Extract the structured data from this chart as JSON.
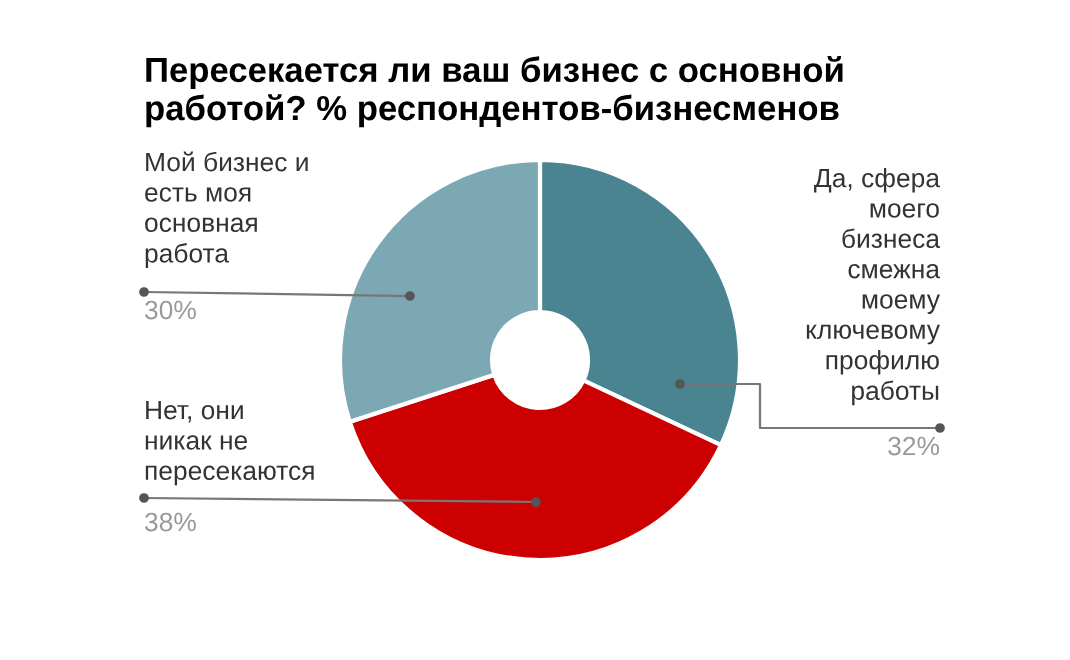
{
  "chart_data": {
    "type": "donut",
    "title": "Пересекается ли ваш бизнес с основной\nработой? % респондентов-бизнесменов",
    "categories": [
      "Да, сфера\nмоего\nбизнеса\nсмежна\nмоему\nключевому\nпрофилю\nработы",
      "Нет, они\nникак не\nпересекаются",
      "Мой бизнес и\nесть моя\nосновная\nработа"
    ],
    "values": [
      32,
      38,
      30
    ],
    "colors": [
      "#4a8491",
      "#cc0000",
      "#7ba8b3"
    ],
    "value_labels": [
      "32%",
      "38%",
      "30%"
    ]
  }
}
